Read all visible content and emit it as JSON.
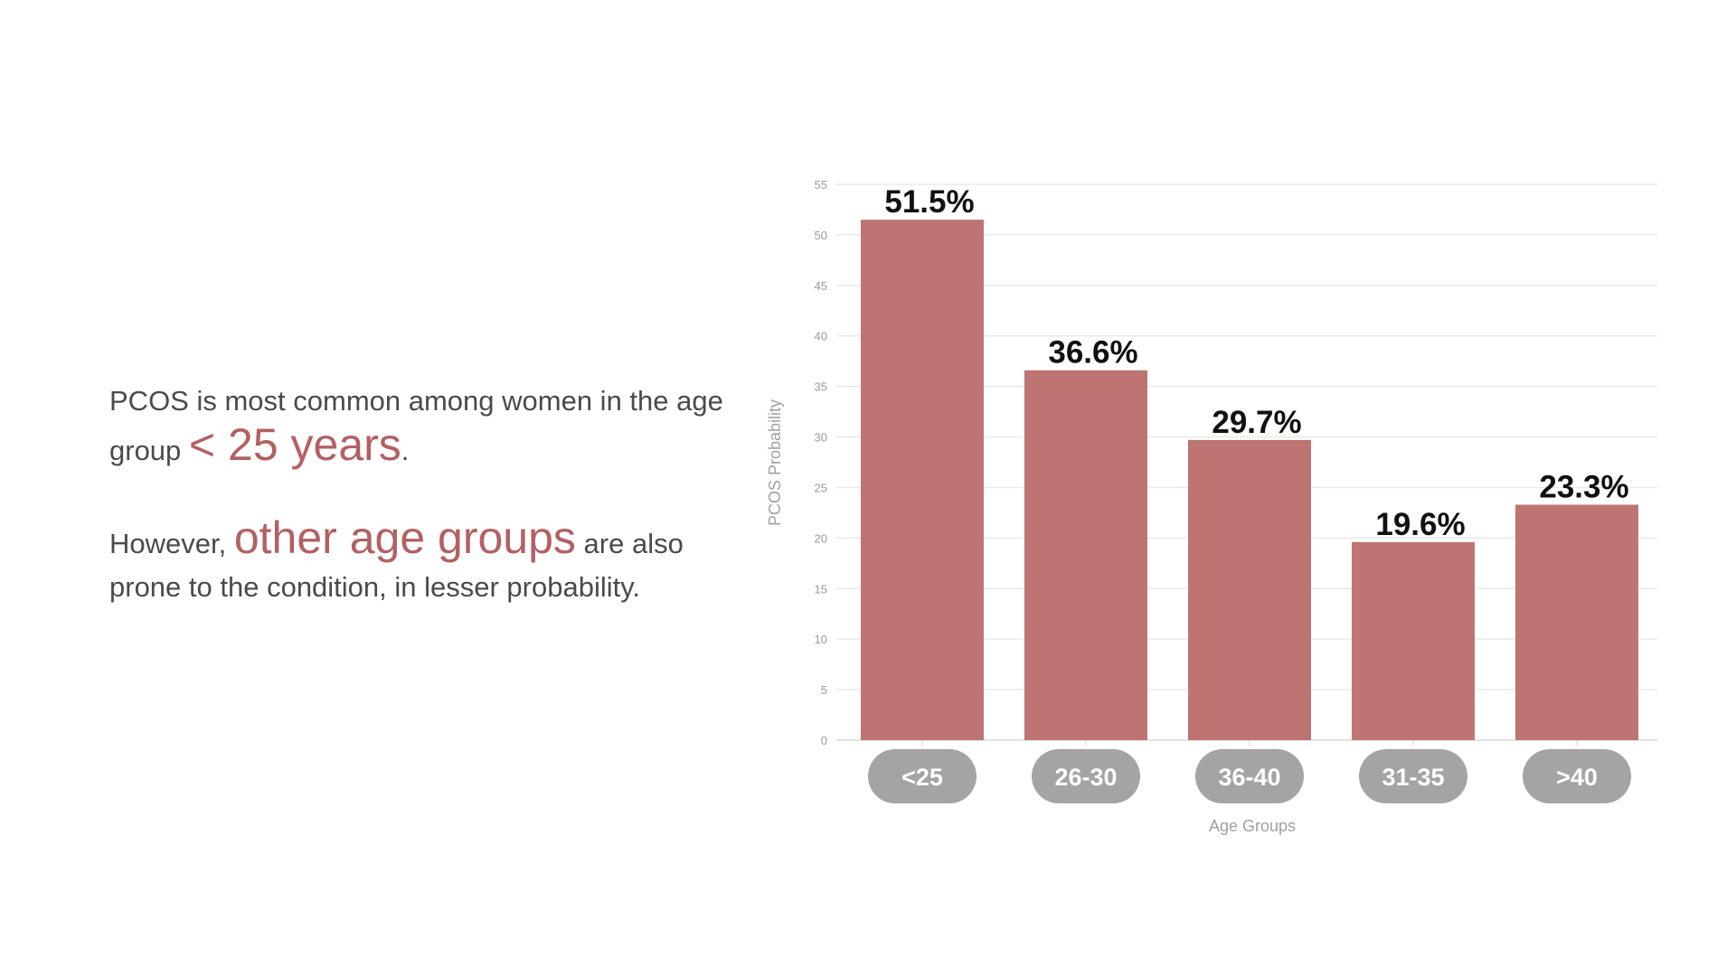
{
  "text": {
    "para1_prefix": "PCOS is most common among women in the age group",
    "para1_highlight": "< 25 years",
    "para1_suffix": ".",
    "para2_prefix": "However,",
    "para2_highlight": "other age groups",
    "para2_suffix": "are also prone to the condition, in lesser probability."
  },
  "colors": {
    "bar": "#bd7473",
    "accent": "#b36063",
    "pill": "#a6a3a3",
    "body_text": "#4a4a4a",
    "grid": "#e9e9e9"
  },
  "chart_data": {
    "type": "bar",
    "categories": [
      "<25",
      "26-30",
      "36-40",
      "31-35",
      ">40"
    ],
    "values": [
      51.5,
      36.6,
      29.7,
      19.6,
      23.3
    ],
    "value_labels": [
      "51.5%",
      "36.6%",
      "29.7%",
      "19.6%",
      "23.3%"
    ],
    "title": "",
    "xlabel": "Age Groups",
    "ylabel": "PCOS Probability",
    "ylim": [
      0,
      55
    ],
    "yticks": [
      0,
      5,
      10,
      15,
      20,
      25,
      30,
      35,
      40,
      45,
      50,
      55
    ],
    "grid": true,
    "legend": "none"
  }
}
